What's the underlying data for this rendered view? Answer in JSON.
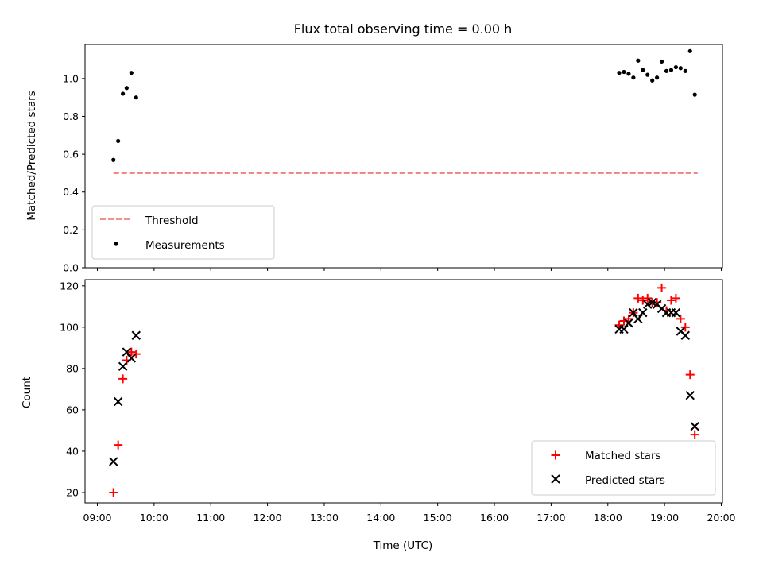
{
  "chart_data": {
    "title": "Flux total observing time = 0.00 h",
    "xlabel": "Time (UTC)",
    "x_ticks": [
      "09:00",
      "10:00",
      "11:00",
      "12:00",
      "13:00",
      "14:00",
      "15:00",
      "16:00",
      "17:00",
      "18:00",
      "19:00",
      "20:00"
    ],
    "x_range": [
      "09:00",
      "20:00"
    ],
    "top": {
      "type": "scatter",
      "ylabel": "Matched/Predicted stars",
      "ylim": [
        0,
        1.18
      ],
      "y_ticks": [
        "0.0",
        "0.2",
        "0.4",
        "0.6",
        "0.8",
        "1.0"
      ],
      "threshold": {
        "name": "Threshold",
        "value": 0.5,
        "x_start": "09:17",
        "x_end": "19:35",
        "color": "#f08080",
        "style": "dashed"
      },
      "measurements": {
        "name": "Measurements",
        "color": "#000000",
        "points": [
          [
            "09:17",
            0.57
          ],
          [
            "09:22",
            0.67
          ],
          [
            "09:27",
            0.92
          ],
          [
            "09:31",
            0.95
          ],
          [
            "09:36",
            1.03
          ],
          [
            "09:41",
            0.9
          ],
          [
            "18:12",
            1.03
          ],
          [
            "18:17",
            1.035
          ],
          [
            "18:22",
            1.025
          ],
          [
            "18:27",
            1.005
          ],
          [
            "18:32",
            1.095
          ],
          [
            "18:37",
            1.045
          ],
          [
            "18:42",
            1.02
          ],
          [
            "18:47",
            0.99
          ],
          [
            "18:52",
            1.005
          ],
          [
            "18:57",
            1.09
          ],
          [
            "19:02",
            1.04
          ],
          [
            "19:07",
            1.045
          ],
          [
            "19:12",
            1.06
          ],
          [
            "19:17",
            1.055
          ],
          [
            "19:22",
            1.04
          ],
          [
            "19:27",
            1.145
          ],
          [
            "19:32",
            0.915
          ]
        ]
      },
      "legend_position": "lower-left"
    },
    "bottom": {
      "type": "scatter",
      "ylabel": "Count",
      "ylim": [
        15,
        123
      ],
      "y_ticks": [
        "20",
        "40",
        "60",
        "80",
        "100",
        "120"
      ],
      "series": [
        {
          "name": "Matched stars",
          "marker": "plus",
          "color": "#ff0000",
          "points": [
            [
              "09:17",
              20
            ],
            [
              "09:22",
              43
            ],
            [
              "09:27",
              75
            ],
            [
              "09:31",
              84
            ],
            [
              "09:36",
              88
            ],
            [
              "09:41",
              87
            ],
            [
              "18:12",
              101
            ],
            [
              "18:17",
              103
            ],
            [
              "18:22",
              104
            ],
            [
              "18:27",
              107
            ],
            [
              "18:32",
              114
            ],
            [
              "18:37",
              113
            ],
            [
              "18:42",
              114
            ],
            [
              "18:47",
              112
            ],
            [
              "18:52",
              112
            ],
            [
              "18:57",
              119
            ],
            [
              "19:02",
              108
            ],
            [
              "19:07",
              113
            ],
            [
              "19:12",
              114
            ],
            [
              "19:17",
              104
            ],
            [
              "19:22",
              100
            ],
            [
              "19:27",
              77
            ],
            [
              "19:32",
              48
            ]
          ]
        },
        {
          "name": "Predicted stars",
          "marker": "x",
          "color": "#000000",
          "points": [
            [
              "09:17",
              35
            ],
            [
              "09:22",
              64
            ],
            [
              "09:27",
              81
            ],
            [
              "09:31",
              88
            ],
            [
              "09:36",
              85
            ],
            [
              "09:41",
              96
            ],
            [
              "18:12",
              99
            ],
            [
              "18:17",
              99
            ],
            [
              "18:22",
              102
            ],
            [
              "18:27",
              107
            ],
            [
              "18:32",
              104
            ],
            [
              "18:37",
              107
            ],
            [
              "18:42",
              111
            ],
            [
              "18:47",
              112
            ],
            [
              "18:52",
              111
            ],
            [
              "18:57",
              109
            ],
            [
              "19:02",
              107
            ],
            [
              "19:07",
              107
            ],
            [
              "19:12",
              107
            ],
            [
              "19:17",
              98
            ],
            [
              "19:22",
              96
            ],
            [
              "19:27",
              67
            ],
            [
              "19:32",
              52
            ]
          ]
        }
      ],
      "legend_position": "lower-right"
    }
  }
}
